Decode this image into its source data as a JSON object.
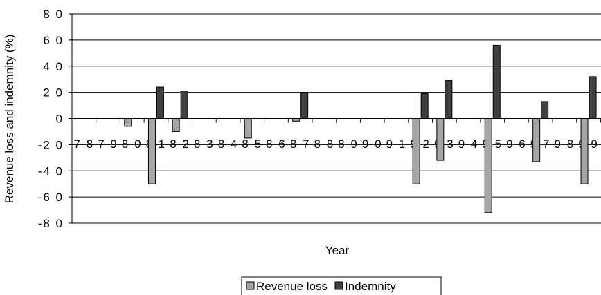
{
  "chart_data": {
    "type": "bar",
    "title": "",
    "xlabel": "Year",
    "ylabel": "Revenue loss and indemnity (%)",
    "ylim": [
      -80,
      80
    ],
    "yticks": [
      "8 0",
      "6 0",
      "4 0",
      "2 0",
      "0",
      "-2 0",
      "-4 0",
      "-6 0",
      "-8 0"
    ],
    "ytick_values": [
      80,
      60,
      40,
      20,
      0,
      -20,
      -40,
      -60,
      -80
    ],
    "categories": [
      "7 8",
      "7 9",
      "8 0",
      "8 1",
      "8 2",
      "8 3",
      "8 4",
      "8 5",
      "8 6",
      "8 7",
      "8 8",
      "8 9",
      "9 0",
      "9 1",
      "9 2",
      "9 3",
      "9 4",
      "9 5",
      "9 6",
      "9 7",
      "9 8",
      "9 9"
    ],
    "series": [
      {
        "name": "Revenue loss",
        "color": "#a6a6a6",
        "values": [
          0,
          0,
          -6,
          -50,
          -10,
          0,
          0,
          -15,
          0,
          -2,
          0,
          0,
          0,
          0,
          -50,
          -32,
          0,
          -72,
          0,
          -33,
          0,
          -50
        ]
      },
      {
        "name": "Indemnity",
        "color": "#404040",
        "values": [
          0,
          0,
          0,
          24,
          21,
          0,
          0,
          0,
          0,
          20,
          0,
          0,
          0,
          0,
          19,
          29,
          0,
          56,
          0,
          13,
          0,
          32
        ]
      }
    ],
    "grid": true,
    "legend": "bottom-center"
  }
}
